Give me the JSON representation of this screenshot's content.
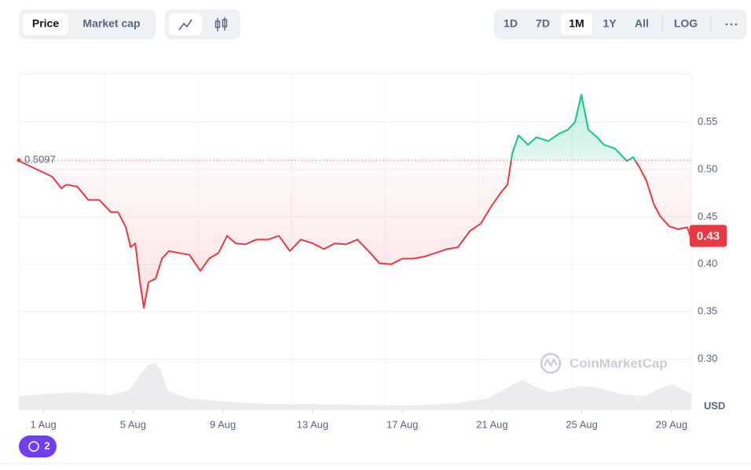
{
  "toolbar": {
    "modes": [
      "Price",
      "Market cap"
    ],
    "ranges": [
      "1D",
      "7D",
      "1M",
      "1Y",
      "All",
      "LOG"
    ]
  },
  "watermark": "CoinMarketCap",
  "history_count": "2",
  "chart_data": {
    "type": "line",
    "x": [
      -1.09,
      0.39,
      0.81,
      1.02,
      1.51,
      2.0,
      2.49,
      3.01,
      3.33,
      3.68,
      3.89,
      4.1,
      4.31,
      4.48,
      4.69,
      5.01,
      5.29,
      5.6,
      6.02,
      6.51,
      7.0,
      7.39,
      7.81,
      8.19,
      8.58,
      9.0,
      9.49,
      10.01,
      10.5,
      10.99,
      11.48,
      12.01,
      12.5,
      12.99,
      13.48,
      14.0,
      14.49,
      14.98,
      15.51,
      16.0,
      16.49,
      16.98,
      17.5,
      17.99,
      18.48,
      19.01,
      19.5,
      19.99,
      20.41,
      20.69,
      20.9,
      21.18,
      21.6,
      21.98,
      22.51,
      23.0,
      23.38,
      23.7,
      23.98,
      24.29,
      24.68,
      24.99,
      25.48,
      26.01,
      26.29,
      26.6,
      26.88,
      27.2,
      27.48,
      27.9,
      28.28,
      28.7,
      28.88
    ],
    "values": [
      0.509,
      0.4925,
      0.48,
      0.484,
      0.482,
      0.468,
      0.468,
      0.455,
      0.455,
      0.439,
      0.418,
      0.422,
      0.381,
      0.354,
      0.381,
      0.385,
      0.406,
      0.414,
      0.412,
      0.41,
      0.393,
      0.406,
      0.412,
      0.43,
      0.422,
      0.421,
      0.426,
      0.426,
      0.43,
      0.414,
      0.426,
      0.422,
      0.416,
      0.422,
      0.421,
      0.426,
      0.414,
      0.401,
      0.4,
      0.406,
      0.406,
      0.408,
      0.412,
      0.416,
      0.418,
      0.435,
      0.443,
      0.462,
      0.476,
      0.484,
      0.517,
      0.536,
      0.526,
      0.534,
      0.53,
      0.538,
      0.542,
      0.55,
      0.579,
      0.542,
      0.534,
      0.526,
      0.522,
      0.509,
      0.513,
      0.501,
      0.488,
      0.464,
      0.451,
      0.44,
      0.437,
      0.439,
      0.426
    ],
    "color_up": "#16c784",
    "color_down": "#ea3943",
    "baseline": 0.5097,
    "current_price": 0.43,
    "y_unit": "USD",
    "xlim": [
      -1.09,
      28.88
    ],
    "ylim": [
      0.2467,
      0.601
    ],
    "xticks": [
      {
        "value": 0,
        "label": "1 Aug"
      },
      {
        "value": 4,
        "label": "5 Aug"
      },
      {
        "value": 8,
        "label": "9 Aug"
      },
      {
        "value": 12,
        "label": "13 Aug"
      },
      {
        "value": 16,
        "label": "17 Aug"
      },
      {
        "value": 20,
        "label": "21 Aug"
      },
      {
        "value": 24,
        "label": "25 Aug"
      },
      {
        "value": 28,
        "label": "29 Aug"
      }
    ],
    "yticks": [
      {
        "value": 0.3,
        "label": "0.30"
      },
      0.35,
      {
        "value": 0.4,
        "label": "0.40"
      },
      0.45,
      {
        "value": 0.5,
        "label": "0.50"
      },
      0.55
    ],
    "grid": true
  }
}
